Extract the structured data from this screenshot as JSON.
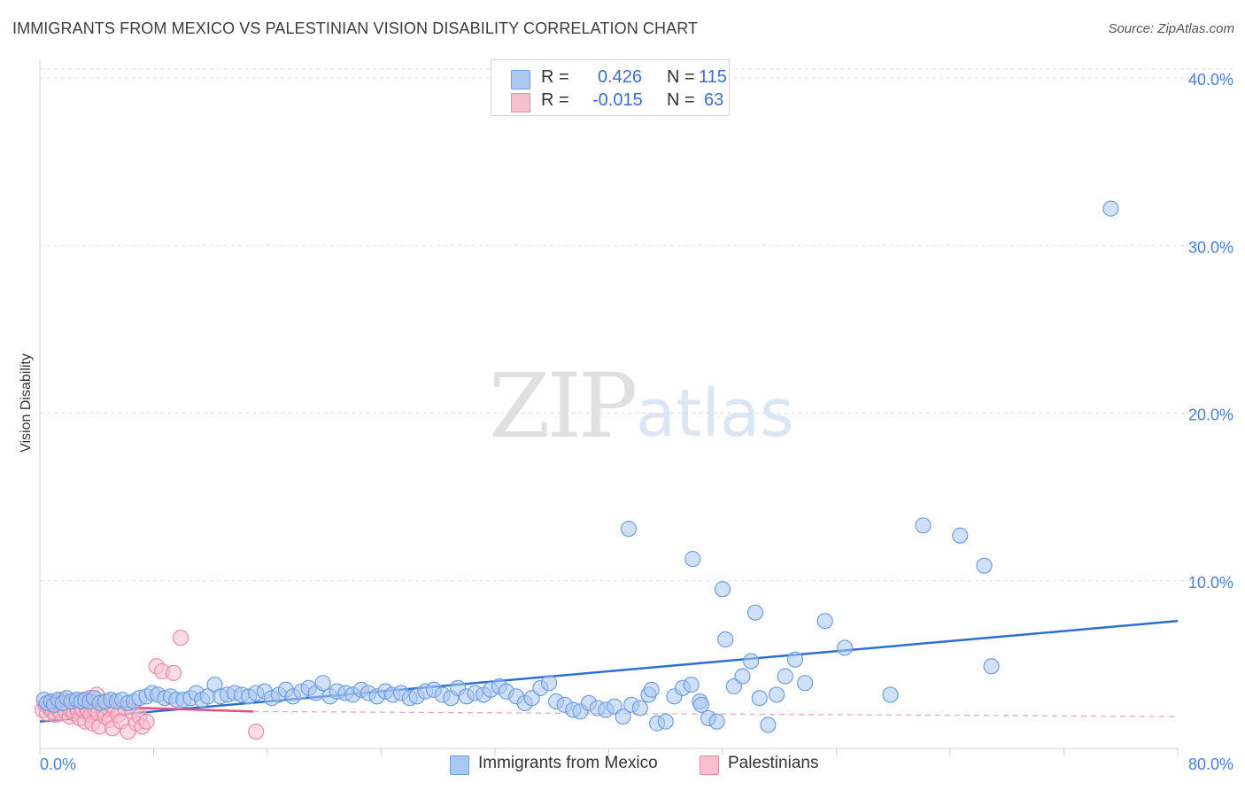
{
  "title": "IMMIGRANTS FROM MEXICO VS PALESTINIAN VISION DISABILITY CORRELATION CHART",
  "source": "Source: ZipAtlas.com",
  "watermark": {
    "zip": "ZIP",
    "atlas": "atlas"
  },
  "legend": {
    "r_label": "R =",
    "n_label": "N =",
    "rows": [
      {
        "series": "Immigrants from Mexico",
        "r": "0.426",
        "n": "115",
        "color": "#a9c7f0",
        "border": "#6f9fe0"
      },
      {
        "series": "Palestinians",
        "r": "-0.015",
        "n": "63",
        "color": "#f8bfd0",
        "border": "#ee8aa8"
      }
    ]
  },
  "chart_data": {
    "type": "scatter",
    "title": "IMMIGRANTS FROM MEXICO VS PALESTINIAN VISION DISABILITY CORRELATION CHART",
    "xlabel": "",
    "ylabel": "Vision Disability",
    "xlim": [
      0,
      80
    ],
    "ylim": [
      0,
      40
    ],
    "x_ticks": [
      "0.0%",
      "80.0%"
    ],
    "y_ticks": [
      {
        "value": 10,
        "label": "10.0%"
      },
      {
        "value": 20,
        "label": "20.0%"
      },
      {
        "value": 30,
        "label": "30.0%"
      },
      {
        "value": 40,
        "label": "40.0%"
      }
    ],
    "series": [
      {
        "name": "Immigrants from Mexico",
        "color": "#6f9fe0",
        "fill": "#a9c7f0",
        "trend": {
          "x": [
            0,
            80
          ],
          "y": [
            1.6,
            7.6
          ],
          "color": "#2d6fd0",
          "dashed": false
        },
        "points": [
          [
            0.3,
            2.9
          ],
          [
            0.5,
            2.7
          ],
          [
            0.8,
            2.8
          ],
          [
            1.0,
            2.6
          ],
          [
            1.3,
            2.9
          ],
          [
            1.6,
            2.7
          ],
          [
            1.9,
            3.0
          ],
          [
            2.2,
            2.8
          ],
          [
            2.6,
            2.9
          ],
          [
            2.9,
            2.8
          ],
          [
            3.2,
            2.9
          ],
          [
            3.5,
            2.8
          ],
          [
            3.8,
            3.0
          ],
          [
            4.2,
            2.7
          ],
          [
            4.6,
            2.8
          ],
          [
            5.0,
            2.9
          ],
          [
            5.4,
            2.8
          ],
          [
            5.8,
            2.9
          ],
          [
            6.2,
            2.7
          ],
          [
            6.6,
            2.8
          ],
          [
            7.0,
            3.0
          ],
          [
            7.5,
            3.1
          ],
          [
            7.9,
            3.3
          ],
          [
            8.3,
            3.2
          ],
          [
            8.8,
            3.0
          ],
          [
            9.2,
            3.1
          ],
          [
            9.6,
            2.9
          ],
          [
            10.1,
            2.9
          ],
          [
            10.6,
            3.0
          ],
          [
            11.0,
            3.3
          ],
          [
            11.4,
            2.9
          ],
          [
            11.8,
            3.1
          ],
          [
            12.3,
            3.8
          ],
          [
            12.7,
            3.1
          ],
          [
            13.2,
            3.2
          ],
          [
            13.7,
            3.3
          ],
          [
            14.2,
            3.2
          ],
          [
            14.7,
            3.1
          ],
          [
            15.2,
            3.3
          ],
          [
            15.8,
            3.4
          ],
          [
            16.3,
            3.0
          ],
          [
            16.8,
            3.2
          ],
          [
            17.3,
            3.5
          ],
          [
            17.8,
            3.1
          ],
          [
            18.4,
            3.4
          ],
          [
            18.9,
            3.6
          ],
          [
            19.4,
            3.3
          ],
          [
            19.9,
            3.9
          ],
          [
            20.4,
            3.1
          ],
          [
            20.9,
            3.4
          ],
          [
            21.5,
            3.3
          ],
          [
            22.0,
            3.2
          ],
          [
            22.6,
            3.5
          ],
          [
            23.1,
            3.3
          ],
          [
            23.7,
            3.1
          ],
          [
            24.3,
            3.4
          ],
          [
            24.8,
            3.2
          ],
          [
            25.4,
            3.3
          ],
          [
            26.0,
            3.0
          ],
          [
            26.5,
            3.1
          ],
          [
            27.1,
            3.4
          ],
          [
            27.7,
            3.5
          ],
          [
            28.3,
            3.2
          ],
          [
            28.9,
            3.0
          ],
          [
            29.4,
            3.6
          ],
          [
            30.0,
            3.1
          ],
          [
            30.6,
            3.3
          ],
          [
            31.2,
            3.2
          ],
          [
            31.7,
            3.5
          ],
          [
            32.3,
            3.7
          ],
          [
            32.8,
            3.4
          ],
          [
            33.5,
            3.1
          ],
          [
            34.1,
            2.7
          ],
          [
            34.6,
            3.0
          ],
          [
            35.2,
            3.6
          ],
          [
            35.8,
            3.9
          ],
          [
            36.3,
            2.8
          ],
          [
            36.9,
            2.6
          ],
          [
            37.5,
            2.3
          ],
          [
            38.0,
            2.2
          ],
          [
            38.6,
            2.7
          ],
          [
            39.2,
            2.4
          ],
          [
            39.8,
            2.3
          ],
          [
            40.4,
            2.5
          ],
          [
            41.0,
            1.9
          ],
          [
            41.6,
            2.6
          ],
          [
            42.2,
            2.4
          ],
          [
            42.8,
            3.2
          ],
          [
            43.4,
            1.5
          ],
          [
            44.0,
            1.6
          ],
          [
            44.6,
            3.1
          ],
          [
            45.2,
            3.6
          ],
          [
            45.8,
            3.8
          ],
          [
            46.4,
            2.8
          ],
          [
            47.0,
            1.8
          ],
          [
            47.6,
            1.6
          ],
          [
            48.2,
            6.5
          ],
          [
            48.8,
            3.7
          ],
          [
            49.4,
            4.3
          ],
          [
            50.0,
            5.2
          ],
          [
            50.6,
            3.0
          ],
          [
            51.2,
            1.4
          ],
          [
            51.8,
            3.2
          ],
          [
            52.4,
            4.3
          ],
          [
            53.1,
            5.3
          ],
          [
            53.8,
            3.9
          ],
          [
            55.2,
            7.6
          ],
          [
            56.6,
            6.0
          ],
          [
            59.8,
            3.2
          ],
          [
            66.9,
            4.9
          ],
          [
            62.1,
            13.3
          ],
          [
            64.7,
            12.7
          ],
          [
            66.4,
            10.9
          ],
          [
            45.9,
            11.3
          ],
          [
            41.4,
            13.1
          ],
          [
            75.3,
            32.2
          ],
          [
            48.0,
            9.5
          ],
          [
            50.3,
            8.1
          ],
          [
            46.5,
            2.6
          ],
          [
            43.0,
            3.5
          ]
        ]
      },
      {
        "name": "Palestinians",
        "color": "#ee8aa8",
        "fill": "#f8bfd0",
        "trend": {
          "x": [
            0,
            15
          ],
          "y": [
            2.6,
            2.2
          ],
          "color": "#e05080",
          "dashed": false
        },
        "trend_ext": {
          "x": [
            15,
            80
          ],
          "y": [
            2.2,
            1.9
          ],
          "color": "#e8a0b8",
          "dashed": true
        },
        "points": [
          [
            0.2,
            2.3
          ],
          [
            0.4,
            2.6
          ],
          [
            0.5,
            2.1
          ],
          [
            0.7,
            2.4
          ],
          [
            0.8,
            2.8
          ],
          [
            0.9,
            2.2
          ],
          [
            1.0,
            2.5
          ],
          [
            1.1,
            2.0
          ],
          [
            1.2,
            2.7
          ],
          [
            1.3,
            2.3
          ],
          [
            1.4,
            2.6
          ],
          [
            1.5,
            2.1
          ],
          [
            1.6,
            2.9
          ],
          [
            1.7,
            2.4
          ],
          [
            1.8,
            2.2
          ],
          [
            1.9,
            2.7
          ],
          [
            2.0,
            2.5
          ],
          [
            2.1,
            1.9
          ],
          [
            2.2,
            2.3
          ],
          [
            2.3,
            2.8
          ],
          [
            2.4,
            2.1
          ],
          [
            2.5,
            2.6
          ],
          [
            2.6,
            2.4
          ],
          [
            2.7,
            2.2
          ],
          [
            2.8,
            1.8
          ],
          [
            2.9,
            2.5
          ],
          [
            3.0,
            2.3
          ],
          [
            3.1,
            2.9
          ],
          [
            3.2,
            1.6
          ],
          [
            3.3,
            2.4
          ],
          [
            3.4,
            2.2
          ],
          [
            3.5,
            3.0
          ],
          [
            3.6,
            2.0
          ],
          [
            3.7,
            1.5
          ],
          [
            3.8,
            2.6
          ],
          [
            3.9,
            2.3
          ],
          [
            4.0,
            3.2
          ],
          [
            4.1,
            2.1
          ],
          [
            4.2,
            1.3
          ],
          [
            4.3,
            2.7
          ],
          [
            4.4,
            2.5
          ],
          [
            4.5,
            2.2
          ],
          [
            4.6,
            1.9
          ],
          [
            4.7,
            2.8
          ],
          [
            4.8,
            2.4
          ],
          [
            4.9,
            1.7
          ],
          [
            5.0,
            2.6
          ],
          [
            5.1,
            1.2
          ],
          [
            5.3,
            2.3
          ],
          [
            5.5,
            2.0
          ],
          [
            5.7,
            1.6
          ],
          [
            6.0,
            2.4
          ],
          [
            6.2,
            1.0
          ],
          [
            6.5,
            2.2
          ],
          [
            6.8,
            1.5
          ],
          [
            7.0,
            1.9
          ],
          [
            7.2,
            1.3
          ],
          [
            7.5,
            1.6
          ],
          [
            8.2,
            4.9
          ],
          [
            8.6,
            4.6
          ],
          [
            9.4,
            4.5
          ],
          [
            9.9,
            6.6
          ],
          [
            15.2,
            1.0
          ]
        ]
      }
    ]
  }
}
